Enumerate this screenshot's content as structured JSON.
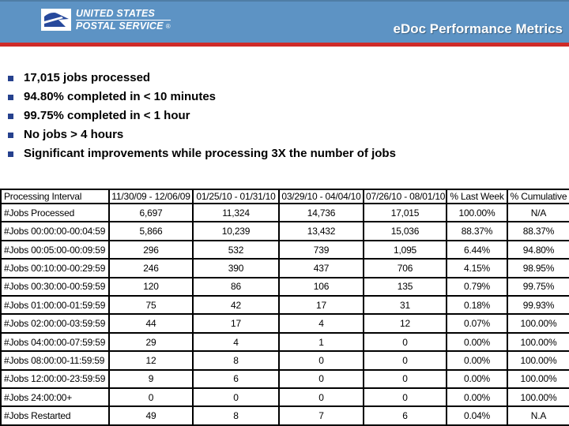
{
  "header": {
    "title": "eDoc Performance Metrics",
    "logo": {
      "line1": "UNITED STATES",
      "line2": "POSTAL SERVICE",
      "registered": "®"
    }
  },
  "bullets": [
    "17,015 jobs processed",
    "94.80% completed in < 10 minutes",
    "99.75% completed in < 1 hour",
    "No jobs > 4 hours",
    "Significant improvements while processing 3X the number of jobs"
  ],
  "table": {
    "columns": [
      "Processing Interval",
      "11/30/09 - 12/06/09",
      "01/25/10 - 01/31/10",
      "03/29/10 - 04/04/10",
      "07/26/10 - 08/01/10",
      "% Last Week",
      "% Cumulative"
    ],
    "rows": [
      {
        "label": "#Jobs Processed",
        "values": [
          "6,697",
          "11,324",
          "14,736",
          "17,015",
          "100.00%",
          "N/A"
        ]
      },
      {
        "label": "#Jobs 00:00:00-00:04:59",
        "values": [
          "5,866",
          "10,239",
          "13,432",
          "15,036",
          "88.37%",
          "88.37%"
        ]
      },
      {
        "label": "#Jobs 00:05:00-00:09:59",
        "values": [
          "296",
          "532",
          "739",
          "1,095",
          "6.44%",
          "94.80%"
        ]
      },
      {
        "label": "#Jobs 00:10:00-00:29:59",
        "values": [
          "246",
          "390",
          "437",
          "706",
          "4.15%",
          "98.95%"
        ]
      },
      {
        "label": "#Jobs 00:30:00-00:59:59",
        "values": [
          "120",
          "86",
          "106",
          "135",
          "0.79%",
          "99.75%"
        ]
      },
      {
        "label": "#Jobs 01:00:00-01:59:59",
        "values": [
          "75",
          "42",
          "17",
          "31",
          "0.18%",
          "99.93%"
        ]
      },
      {
        "label": "#Jobs 02:00:00-03:59:59",
        "values": [
          "44",
          "17",
          "4",
          "12",
          "0.07%",
          "100.00%"
        ]
      },
      {
        "label": "#Jobs 04:00:00-07:59:59",
        "values": [
          "29",
          "4",
          "1",
          "0",
          "0.00%",
          "100.00%"
        ]
      },
      {
        "label": "#Jobs 08:00:00-11:59:59",
        "values": [
          "12",
          "8",
          "0",
          "0",
          "0.00%",
          "100.00%"
        ]
      },
      {
        "label": "#Jobs 12:00:00-23:59:59",
        "values": [
          "9",
          "6",
          "0",
          "0",
          "0.00%",
          "100.00%"
        ]
      },
      {
        "label": "#Jobs 24:00:00+",
        "values": [
          "0",
          "0",
          "0",
          "0",
          "0.00%",
          "100.00%"
        ]
      },
      {
        "label": "#Jobs Restarted",
        "values": [
          "49",
          "8",
          "7",
          "6",
          "0.04%",
          "N.A"
        ]
      }
    ]
  },
  "colors": {
    "header_bg": "#5D93C4",
    "stripe": "#CF2B28",
    "bullet": "#26418E",
    "logo_blue": "#27499C"
  }
}
